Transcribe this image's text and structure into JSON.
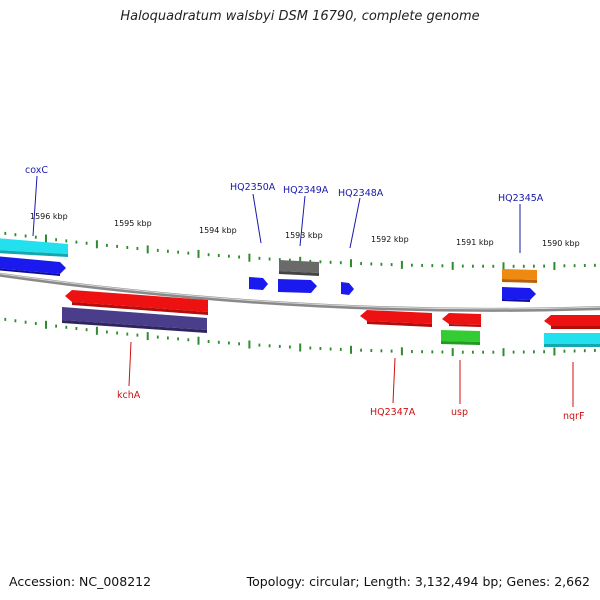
{
  "title": "Haloquadratum walsbyi DSM 16790, complete genome",
  "footer": {
    "accession": "Accession: NC_008212",
    "summary": "Topology: circular; Length: 3,132,494 bp; Genes: 2,662"
  },
  "colors": {
    "backbone": "#8a8a8a",
    "tick": "#2e8b2e",
    "top_label": "#1a1aaa",
    "bottom_label": "#cc1111",
    "red": "#ee1111",
    "blue": "#1a1aee",
    "cyan": "#22e0ee",
    "gray": "#6a6a6a",
    "navy": "#4a3e8a",
    "orange": "#ee8a11",
    "green": "#33cc33"
  },
  "kbp_labels": [
    "1596 kbp",
    "1595 kbp",
    "1594 kbp",
    "1593 kbp",
    "1592 kbp",
    "1591 kbp",
    "1590 kbp"
  ],
  "top_genes": [
    "coxC",
    "HQ2350A",
    "HQ2349A",
    "HQ2348A",
    "HQ2345A"
  ],
  "bottom_genes": [
    "kchA",
    "HQ2347A",
    "usp",
    "nqrF"
  ]
}
